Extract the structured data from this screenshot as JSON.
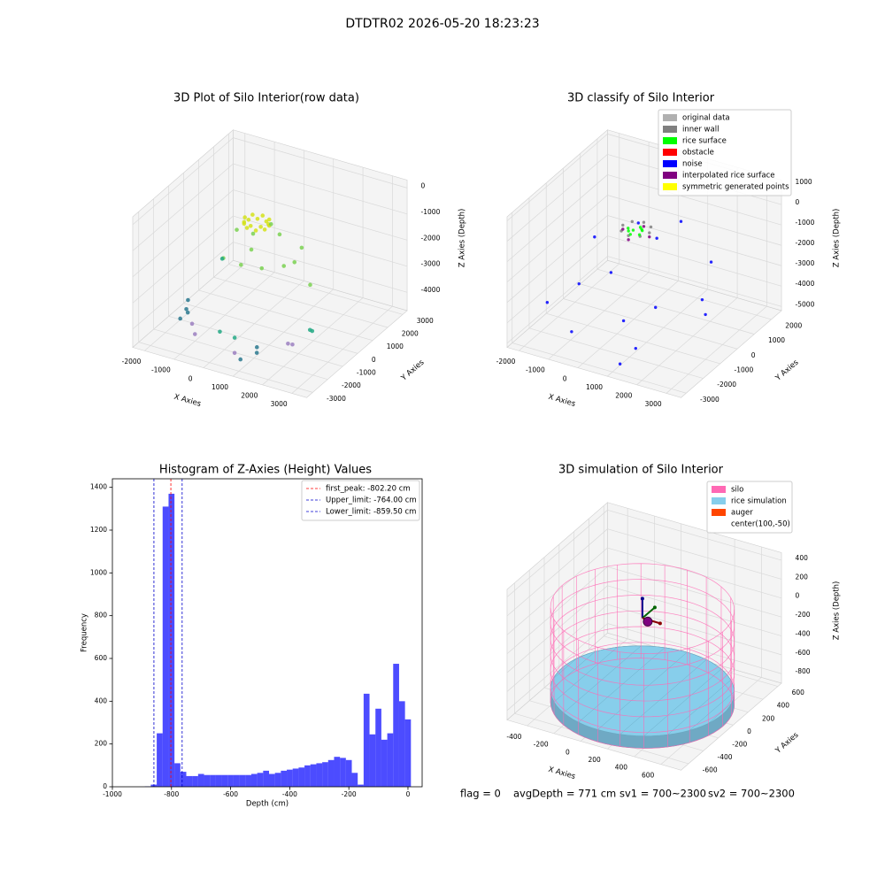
{
  "suptitle": "DTDTR02 2026-05-20 18:23:23",
  "chart_data": [
    {
      "type": "scatter3d",
      "title": "3D Plot of Silo Interior(row data)",
      "xlabel": "X Axies",
      "ylabel": "Y Axies",
      "zlabel": "Z Axies (Depth)",
      "xlim": [
        -2400,
        3500
      ],
      "ylim": [
        -3400,
        3300
      ],
      "zlim": [
        -4700,
        300
      ],
      "xticks": [
        -2000,
        -1000,
        0,
        1000,
        2000,
        3000
      ],
      "yticks": [
        -3000,
        -2000,
        -1000,
        0,
        1000,
        2000,
        3000
      ],
      "zticks": [
        -4000,
        -3000,
        -2000,
        -1000,
        0
      ],
      "series": [
        {
          "color": "#d4e21a",
          "x": [
            500,
            383,
            100,
            -183,
            -300,
            -183,
            100,
            383,
            450,
            250,
            -50,
            -250,
            -250,
            -50,
            250,
            450
          ],
          "y": [
            -50,
            233,
            350,
            233,
            -50,
            -333,
            -450,
            -333,
            100,
            300,
            300,
            100,
            -200,
            -400,
            -400,
            -200
          ],
          "z": [
            -700,
            -700,
            -700,
            -700,
            -700,
            -700,
            -700,
            -700,
            -850,
            -850,
            -850,
            -850,
            -850,
            -850,
            -850,
            -850
          ]
        },
        {
          "color": "#7ad151",
          "x": [
            -600,
            -300,
            200,
            700,
            1200,
            1500,
            -800,
            0,
            900,
            2500,
            -200,
            400
          ],
          "y": [
            0,
            500,
            -600,
            300,
            -400,
            200,
            -500,
            -900,
            900,
            -1200,
            1500,
            -300
          ],
          "z": [
            -1300,
            -1600,
            -1500,
            -1200,
            -1900,
            -1400,
            -2200,
            -2000,
            -2500,
            -1800,
            -1700,
            -2300
          ]
        },
        {
          "color": "#22a884",
          "x": [
            2900,
            2950,
            -1500,
            600,
            200
          ],
          "y": [
            -2000,
            -1950,
            800,
            -2500,
            -2700
          ],
          "z": [
            -3000,
            -3050,
            -3100,
            -3800,
            -3600
          ]
        },
        {
          "color": "#2a788e",
          "x": [
            -2000,
            -1700,
            -1600,
            1000,
            1300,
            1100,
            -1500
          ],
          "y": [
            -500,
            -1200,
            -1300,
            -2900,
            -2400,
            -2000,
            -2000
          ],
          "z": [
            -4200,
            -4100,
            -4150,
            -4300,
            -4200,
            -4250,
            -4000
          ]
        },
        {
          "color": "#9b7fc0",
          "x": [
            -1200,
            -900,
            700,
            1900,
            2000
          ],
          "y": [
            -1800,
            -2200,
            -2700,
            -1500,
            -1400
          ],
          "z": [
            -4200,
            -4300,
            -4250,
            -4100,
            -4150
          ]
        }
      ]
    },
    {
      "type": "scatter3d",
      "title": "3D classify of Silo Interior",
      "xlabel": "X Axies",
      "ylabel": "Y Axies",
      "zlabel": "Z Axies (Depth)",
      "xlim": [
        -2400,
        3500
      ],
      "ylim": [
        -3300,
        2600
      ],
      "zlim": [
        -5200,
        1200
      ],
      "xticks": [
        -2000,
        -1000,
        0,
        1000,
        2000,
        3000
      ],
      "yticks": [
        -3000,
        -2000,
        -1000,
        0,
        1000,
        2000
      ],
      "zticks": [
        -5000,
        -4000,
        -3000,
        -2000,
        -1000,
        0,
        1000
      ],
      "legend": "upper right",
      "series": [
        {
          "name": "original data",
          "color": "#b0b0b0",
          "x": [],
          "y": [],
          "z": []
        },
        {
          "name": "inner wall",
          "color": "#808080",
          "x": [
            550,
            418,
            100,
            -218,
            -350,
            -218,
            100,
            418
          ],
          "y": [
            -50,
            268,
            400,
            268,
            -50,
            -368,
            -500,
            -368
          ],
          "z": [
            -700,
            -700,
            -700,
            -700,
            -700,
            -700,
            -700,
            -700
          ]
        },
        {
          "name": "rice surface",
          "color": "#00ff00",
          "x": [
            0,
            200,
            -100,
            300,
            100,
            -200,
            250,
            50
          ],
          "y": [
            -50,
            100,
            -150,
            -200,
            200,
            0,
            50,
            -300
          ],
          "z": [
            -800,
            -780,
            -810,
            -790,
            -800,
            -820,
            -790,
            -805
          ]
        },
        {
          "name": "obstacle",
          "color": "#ff0000",
          "x": [],
          "y": [],
          "z": []
        },
        {
          "name": "noise",
          "color": "#0000ff",
          "x": [
            -1500,
            -1000,
            -500,
            800,
            1500,
            2500,
            3000,
            1200,
            -1800,
            200,
            2000,
            600,
            -200,
            900,
            2600
          ],
          "y": [
            -2500,
            -1500,
            -2800,
            -2000,
            -2500,
            200,
            -1000,
            -2900,
            800,
            -1700,
            -2200,
            300,
            600,
            1200,
            -500
          ],
          "z": [
            -3200,
            -2800,
            -4000,
            -3500,
            -4200,
            -1500,
            -3000,
            -4800,
            -2500,
            -1600,
            -2200,
            -1200,
            -1000,
            -900,
            -2800
          ]
        },
        {
          "name": "interpolated rice surface",
          "color": "#800080",
          "x": [
            550,
            100,
            -350,
            100
          ],
          "y": [
            -50,
            400,
            -50,
            -500
          ],
          "z": [
            -900,
            -900,
            -900,
            -900
          ]
        },
        {
          "name": "symmetric generated points",
          "color": "#ffff00",
          "x": [],
          "y": [],
          "z": []
        }
      ]
    },
    {
      "type": "histogram",
      "title": "Histogram of Z-Axies (Height) Values",
      "xlabel": "Depth (cm)",
      "ylabel": "Frequency",
      "color": "#0000ff",
      "bins": [
        -890,
        -870,
        -850,
        -830,
        -810,
        -790,
        -770,
        -750,
        -730,
        -710,
        -690,
        -670,
        -650,
        -630,
        -610,
        -590,
        -570,
        -550,
        -530,
        -510,
        -490,
        -470,
        -450,
        -430,
        -410,
        -390,
        -370,
        -350,
        -330,
        -310,
        -290,
        -270,
        -250,
        -230,
        -210,
        -190,
        -170,
        -150,
        -130,
        -110,
        -90,
        -70,
        -50,
        -30,
        -10,
        10
      ],
      "counts": [
        2,
        10,
        250,
        1310,
        1370,
        110,
        70,
        50,
        50,
        60,
        55,
        55,
        55,
        55,
        55,
        55,
        55,
        55,
        60,
        65,
        75,
        60,
        65,
        75,
        80,
        85,
        90,
        100,
        105,
        110,
        115,
        125,
        140,
        135,
        125,
        65,
        10,
        435,
        245,
        365,
        220,
        250,
        575,
        400,
        315
      ],
      "xlim": [
        -1000,
        48
      ],
      "ylim": [
        0,
        1440
      ],
      "xticks": [
        -1000,
        -800,
        -600,
        -400,
        -200,
        0
      ],
      "yticks": [
        0,
        200,
        400,
        600,
        800,
        1000,
        1200,
        1400
      ],
      "legend": "upper right",
      "lines": [
        {
          "name": "first_peak: -802.20 cm",
          "value": -802.2,
          "color": "#ff0000"
        },
        {
          "name": "Upper_limit: -764.00 cm",
          "value": -764.0,
          "color": "#0000cd"
        },
        {
          "name": "Lower_limit: -859.50 cm",
          "value": -859.5,
          "color": "#0000cd"
        }
      ]
    },
    {
      "type": "silo3d",
      "title": "3D simulation of Silo Interior",
      "xlabel": "X Axies",
      "ylabel": "Y Axies",
      "zlabel": "Z Axies (Depth)",
      "xlim": [
        -550,
        750
      ],
      "ylim": [
        -700,
        650
      ],
      "zlim": [
        -900,
        480
      ],
      "xticks": [
        -400,
        -200,
        0,
        200,
        400,
        600
      ],
      "yticks": [
        -600,
        -400,
        -200,
        0,
        200,
        400,
        600
      ],
      "zticks": [
        -800,
        -600,
        -400,
        -200,
        0,
        200,
        400
      ],
      "legend": "upper right",
      "silo": {
        "name": "silo",
        "color": "#ff69b4",
        "radius": 600,
        "z": [
          -900,
          100
        ]
      },
      "rice": {
        "name": "rice simulation",
        "color": "#87ceeb",
        "z": -771
      },
      "auger": {
        "name": "auger",
        "color": "#ff4500"
      },
      "center": {
        "name": "center(100,-50)",
        "x": 100,
        "y": -50
      }
    }
  ],
  "footer": [
    "flag = 0",
    "avgDepth = 771 cm",
    "sv1 = 700~2300",
    "sv2 = 700~2300"
  ]
}
